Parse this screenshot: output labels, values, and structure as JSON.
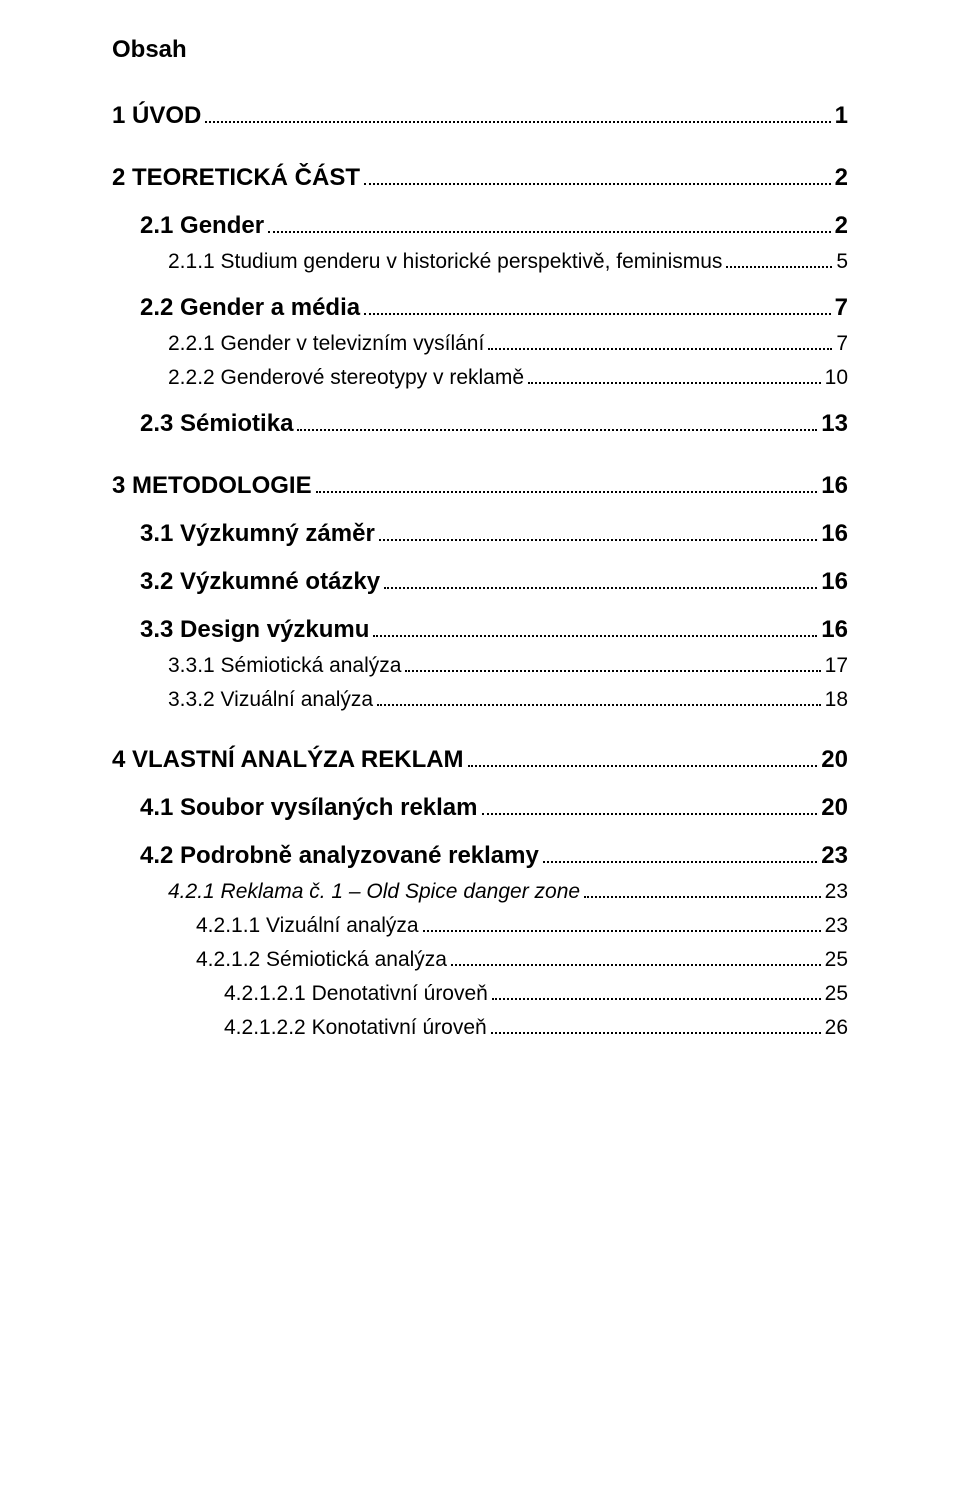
{
  "title": "Obsah",
  "entries": [
    {
      "indent": 0,
      "label": "1  ÚVOD",
      "page": "1",
      "bold": true,
      "italic": false,
      "size": "top",
      "gap": "lg"
    },
    {
      "indent": 0,
      "label": "2  TEORETICKÁ ČÁST",
      "page": "2",
      "bold": true,
      "italic": false,
      "size": "top",
      "gap": "lg"
    },
    {
      "indent": 1,
      "label": "2.1 Gender",
      "page": "2",
      "bold": true,
      "italic": false,
      "size": "sub",
      "gap": "md"
    },
    {
      "indent": 2,
      "label": "2.1.1 Studium genderu v historické perspektivě, feminismus",
      "page": "5",
      "bold": false,
      "italic": false,
      "size": "body",
      "gap": ""
    },
    {
      "indent": 1,
      "label": "2.2 Gender a média",
      "page": "7",
      "bold": true,
      "italic": false,
      "size": "sub",
      "gap": "md"
    },
    {
      "indent": 2,
      "label": "2.2.1 Gender v televizním vysílání",
      "page": "7",
      "bold": false,
      "italic": false,
      "size": "body",
      "gap": ""
    },
    {
      "indent": 2,
      "label": "2.2.2 Genderové stereotypy v reklamě",
      "page": "10",
      "bold": false,
      "italic": false,
      "size": "body",
      "gap": ""
    },
    {
      "indent": 1,
      "label": "2.3 Sémiotika",
      "page": "13",
      "bold": true,
      "italic": false,
      "size": "sub",
      "gap": "md"
    },
    {
      "indent": 0,
      "label": "3  METODOLOGIE",
      "page": "16",
      "bold": true,
      "italic": false,
      "size": "top",
      "gap": "lg"
    },
    {
      "indent": 1,
      "label": "3.1 Výzkumný záměr",
      "page": "16",
      "bold": true,
      "italic": false,
      "size": "sub",
      "gap": "md"
    },
    {
      "indent": 1,
      "label": "3.2 Výzkumné otázky",
      "page": "16",
      "bold": true,
      "italic": false,
      "size": "sub",
      "gap": "md"
    },
    {
      "indent": 1,
      "label": "3.3 Design výzkumu",
      "page": "16",
      "bold": true,
      "italic": false,
      "size": "sub",
      "gap": "md"
    },
    {
      "indent": 2,
      "label": "3.3.1 Sémiotická analýza",
      "page": "17",
      "bold": false,
      "italic": false,
      "size": "body",
      "gap": ""
    },
    {
      "indent": 2,
      "label": "3.3.2 Vizuální analýza",
      "page": "18",
      "bold": false,
      "italic": false,
      "size": "body",
      "gap": ""
    },
    {
      "indent": 0,
      "label": "4  VLASTNÍ ANALÝZA REKLAM",
      "page": "20",
      "bold": true,
      "italic": false,
      "size": "top",
      "gap": "lg"
    },
    {
      "indent": 1,
      "label": "4.1 Soubor vysílaných reklam",
      "page": "20",
      "bold": true,
      "italic": false,
      "size": "sub",
      "gap": "md"
    },
    {
      "indent": 1,
      "label": "4.2 Podrobně analyzované reklamy",
      "page": "23",
      "bold": true,
      "italic": false,
      "size": "sub",
      "gap": "md"
    },
    {
      "indent": 2,
      "label": "4.2.1 Reklama č. 1 – Old Spice danger zone",
      "page": "23",
      "bold": false,
      "italic": true,
      "size": "body",
      "gap": ""
    },
    {
      "indent": 3,
      "label": "4.2.1.1 Vizuální analýza",
      "page": "23",
      "bold": false,
      "italic": false,
      "size": "body",
      "gap": ""
    },
    {
      "indent": 3,
      "label": "4.2.1.2 Sémiotická analýza",
      "page": "25",
      "bold": false,
      "italic": false,
      "size": "body",
      "gap": ""
    },
    {
      "indent": 4,
      "label": "4.2.1.2.1   Denotativní úroveň",
      "page": "25",
      "bold": false,
      "italic": false,
      "size": "body",
      "gap": ""
    },
    {
      "indent": 4,
      "label": "4.2.1.2.2   Konotativní úroveň",
      "page": "26",
      "bold": false,
      "italic": false,
      "size": "body",
      "gap": ""
    }
  ]
}
